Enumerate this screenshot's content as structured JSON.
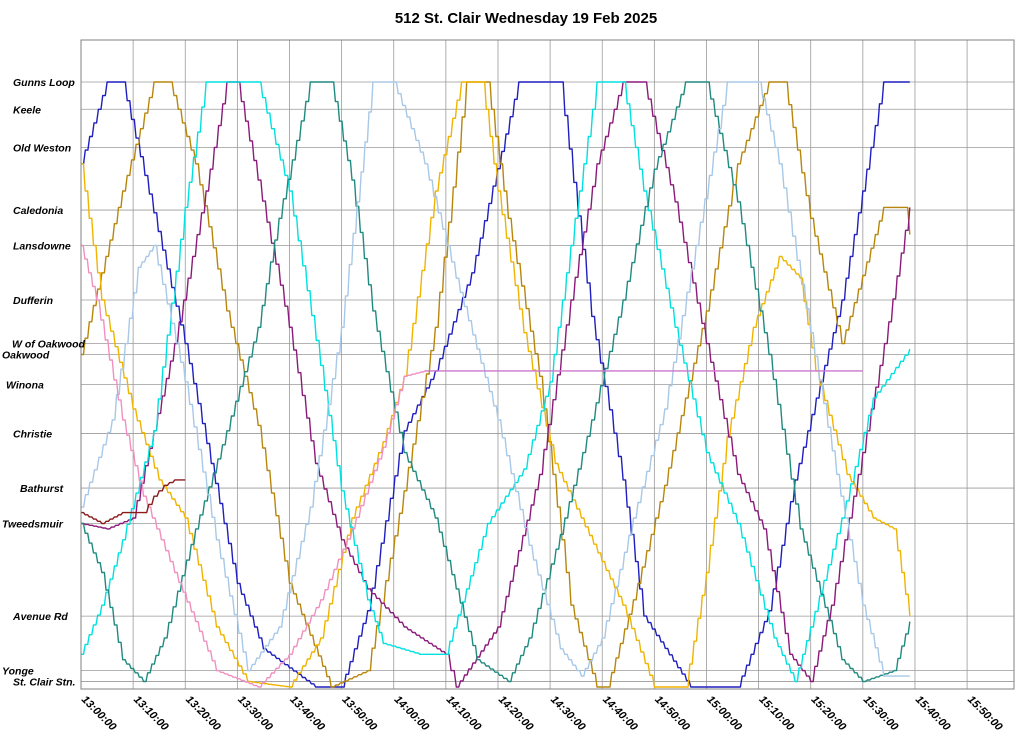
{
  "chart_data": {
    "type": "line",
    "title": "512 St. Clair Wednesday 19 Feb 2025",
    "xlabel": "",
    "ylabel": "",
    "grid": true,
    "x_ticks": [
      "13:00:00",
      "13:10:00",
      "13:20:00",
      "13:30:00",
      "13:40:00",
      "13:50:00",
      "14:00:00",
      "14:10:00",
      "14:20:00",
      "14:30:00",
      "14:40:00",
      "14:50:00",
      "15:00:00",
      "15:10:00",
      "15:20:00",
      "15:30:00",
      "15:40:00",
      "15:50:00"
    ],
    "xlim": [
      "13:00:00",
      "15:59:00"
    ],
    "stops": [
      {
        "label": "Gunns Loop",
        "km": 0.0
      },
      {
        "label": "Keele",
        "km": 0.5
      },
      {
        "label": "Old Weston",
        "km": 1.2
      },
      {
        "label": "Caledonia",
        "km": 2.35
      },
      {
        "label": "Lansdowne",
        "km": 3.0
      },
      {
        "label": "Dufferin",
        "km": 4.0
      },
      {
        "label": "W of Oakwood",
        "km": 4.8
      },
      {
        "label": "Oakwood",
        "km": 5.0
      },
      {
        "label": "Winona",
        "km": 5.55
      },
      {
        "label": "Christie",
        "km": 6.45
      },
      {
        "label": "Bathurst",
        "km": 7.45
      },
      {
        "label": "Tweedsmuir",
        "km": 8.1
      },
      {
        "label": "Avenue Rd",
        "km": 9.8
      },
      {
        "label": "Yonge",
        "km": 10.8
      },
      {
        "label": "St. Clair Stn.",
        "km": 11.0
      }
    ],
    "ylim": [
      0,
      11.1
    ],
    "series": [
      {
        "color": "#1f1fbf",
        "points": [
          [
            0,
            1.5
          ],
          [
            5,
            0
          ],
          [
            8,
            0
          ],
          [
            20,
            4.8
          ],
          [
            30,
            9.2
          ],
          [
            35,
            10.4
          ],
          [
            45,
            11.1
          ],
          [
            50,
            11.1
          ],
          [
            55,
            9.7
          ],
          [
            62,
            6.4
          ],
          [
            68,
            5.3
          ],
          [
            75,
            3.5
          ],
          [
            84,
            0
          ],
          [
            92,
            0
          ],
          [
            98,
            4.3
          ],
          [
            104,
            7.3
          ],
          [
            108,
            9.8
          ],
          [
            117,
            11.1
          ],
          [
            126,
            11.1
          ],
          [
            132,
            9.7
          ],
          [
            137,
            7.3
          ],
          [
            146,
            4.0
          ],
          [
            154,
            0
          ],
          [
            159,
            0
          ]
        ]
      },
      {
        "color": "#b8860b",
        "points": [
          [
            0,
            5.0
          ],
          [
            8,
            2.0
          ],
          [
            14,
            0
          ],
          [
            17,
            0
          ],
          [
            22,
            1.5
          ],
          [
            28,
            4.2
          ],
          [
            34,
            6.3
          ],
          [
            40,
            9.2
          ],
          [
            48,
            11.1
          ],
          [
            55,
            10.8
          ],
          [
            62,
            7.5
          ],
          [
            68,
            4.5
          ],
          [
            74,
            0
          ],
          [
            78,
            0
          ],
          [
            82,
            2.5
          ],
          [
            88,
            5.4
          ],
          [
            94,
            9.6
          ],
          [
            99,
            11.1
          ],
          [
            101,
            11.1
          ],
          [
            106,
            9.5
          ],
          [
            112,
            7.4
          ],
          [
            120,
            4.2
          ],
          [
            126,
            1.5
          ],
          [
            132,
            0
          ],
          [
            135,
            0
          ],
          [
            140,
            2.5
          ],
          [
            146,
            4.8
          ],
          [
            154,
            2.3
          ],
          [
            158,
            2.3
          ],
          [
            159,
            2.8
          ]
        ]
      },
      {
        "color": "#f0b400",
        "points": [
          [
            0,
            1.5
          ],
          [
            4,
            4.0
          ],
          [
            10,
            6.0
          ],
          [
            15,
            7.3
          ],
          [
            20,
            8.0
          ],
          [
            26,
            10.0
          ],
          [
            32,
            11.0
          ],
          [
            40,
            11.1
          ],
          [
            46,
            10.2
          ],
          [
            52,
            8.0
          ],
          [
            58,
            6.6
          ],
          [
            62,
            5.4
          ],
          [
            68,
            2.0
          ],
          [
            73,
            0
          ],
          [
            77,
            0
          ],
          [
            80,
            2.0
          ],
          [
            85,
            4.6
          ],
          [
            91,
            7.0
          ],
          [
            96,
            8.0
          ],
          [
            104,
            9.6
          ],
          [
            110,
            11.1
          ],
          [
            116,
            11.1
          ],
          [
            120,
            9.0
          ],
          [
            124,
            6.5
          ],
          [
            129,
            4.5
          ],
          [
            134,
            3.2
          ],
          [
            138,
            3.6
          ],
          [
            141,
            5.3
          ],
          [
            147,
            7.2
          ],
          [
            152,
            8.0
          ],
          [
            156,
            8.2
          ],
          [
            159,
            9.8
          ]
        ]
      },
      {
        "color": "#8b1a7a",
        "points": [
          [
            0,
            8.1
          ],
          [
            5,
            8.2
          ],
          [
            10,
            8.0
          ],
          [
            18,
            4.8
          ],
          [
            24,
            2.0
          ],
          [
            28,
            0
          ],
          [
            30,
            0
          ],
          [
            34,
            1.8
          ],
          [
            40,
            4.5
          ],
          [
            45,
            7.0
          ],
          [
            50,
            8.4
          ],
          [
            55,
            9.3
          ],
          [
            62,
            10.0
          ],
          [
            70,
            10.5
          ],
          [
            72,
            11.1
          ],
          [
            80,
            10.0
          ],
          [
            88,
            7.2
          ],
          [
            94,
            4.0
          ],
          [
            99,
            1.5
          ],
          [
            104,
            0
          ],
          [
            108,
            0
          ],
          [
            114,
            2.2
          ],
          [
            120,
            4.8
          ],
          [
            126,
            7.2
          ],
          [
            131,
            8.2
          ],
          [
            136,
            10.5
          ],
          [
            140,
            11.0
          ],
          [
            144,
            9.6
          ],
          [
            150,
            6.8
          ],
          [
            155,
            4.4
          ],
          [
            159,
            2.3
          ]
        ]
      },
      {
        "color": "#00e0e0",
        "points": [
          [
            0,
            10.5
          ],
          [
            4,
            9.6
          ],
          [
            8,
            8.4
          ],
          [
            14,
            6.4
          ],
          [
            20,
            2.3
          ],
          [
            24,
            0
          ],
          [
            26,
            0
          ],
          [
            34,
            0
          ],
          [
            40,
            2.0
          ],
          [
            46,
            5.2
          ],
          [
            50,
            7.5
          ],
          [
            55,
            9.5
          ],
          [
            58,
            10.3
          ],
          [
            65,
            10.5
          ],
          [
            70,
            10.5
          ],
          [
            78,
            8.1
          ],
          [
            85,
            7.1
          ],
          [
            90,
            5.5
          ],
          [
            94,
            3.0
          ],
          [
            99,
            0
          ],
          [
            104,
            0
          ],
          [
            108,
            2.0
          ],
          [
            114,
            4.5
          ],
          [
            120,
            6.8
          ],
          [
            126,
            8.1
          ],
          [
            133,
            10.2
          ],
          [
            137,
            11.0
          ],
          [
            140,
            10.0
          ],
          [
            146,
            8.0
          ],
          [
            152,
            5.8
          ],
          [
            159,
            4.9
          ]
        ]
      },
      {
        "color": "#1f8a80",
        "points": [
          [
            0,
            8.1
          ],
          [
            4,
            9.0
          ],
          [
            8,
            10.6
          ],
          [
            12,
            11.0
          ],
          [
            16,
            10.2
          ],
          [
            22,
            8.2
          ],
          [
            28,
            6.4
          ],
          [
            34,
            4.5
          ],
          [
            38,
            2.5
          ],
          [
            44,
            0
          ],
          [
            48,
            0
          ],
          [
            52,
            1.8
          ],
          [
            56,
            4.2
          ],
          [
            62,
            6.8
          ],
          [
            68,
            8.0
          ],
          [
            76,
            10.6
          ],
          [
            82,
            11.0
          ],
          [
            86,
            10.2
          ],
          [
            92,
            8.3
          ],
          [
            98,
            6.2
          ],
          [
            104,
            4.0
          ],
          [
            110,
            1.6
          ],
          [
            116,
            0
          ],
          [
            120,
            0
          ],
          [
            126,
            2.2
          ],
          [
            132,
            5.0
          ],
          [
            138,
            8.2
          ],
          [
            146,
            10.6
          ],
          [
            150,
            11.0
          ],
          [
            156,
            10.8
          ],
          [
            159,
            9.9
          ]
        ]
      },
      {
        "color": "#a8c8e8",
        "points": [
          [
            0,
            7.8
          ],
          [
            6,
            6.2
          ],
          [
            11,
            3.4
          ],
          [
            14,
            3.0
          ],
          [
            20,
            5.5
          ],
          [
            26,
            8.4
          ],
          [
            32,
            10.8
          ],
          [
            38,
            10.0
          ],
          [
            44,
            7.8
          ],
          [
            50,
            4.5
          ],
          [
            53,
            2.2
          ],
          [
            56,
            0
          ],
          [
            60,
            0
          ],
          [
            66,
            1.5
          ],
          [
            72,
            3.6
          ],
          [
            80,
            6.2
          ],
          [
            86,
            8.5
          ],
          [
            92,
            10.4
          ],
          [
            96,
            10.9
          ],
          [
            100,
            10.2
          ],
          [
            106,
            8.0
          ],
          [
            112,
            6.0
          ],
          [
            118,
            3.0
          ],
          [
            124,
            0
          ],
          [
            130,
            0
          ],
          [
            134,
            1.5
          ],
          [
            140,
            4.6
          ],
          [
            145,
            7.2
          ],
          [
            150,
            9.6
          ],
          [
            154,
            10.9
          ],
          [
            159,
            10.9
          ]
        ]
      },
      {
        "color": "#f090c0",
        "points": [
          [
            0,
            3.0
          ],
          [
            3,
            4.0
          ],
          [
            8,
            6.2
          ],
          [
            12,
            7.6
          ],
          [
            18,
            9.0
          ],
          [
            26,
            10.8
          ],
          [
            34,
            11.1
          ],
          [
            40,
            10.5
          ],
          [
            46,
            9.5
          ],
          [
            52,
            8.2
          ],
          [
            58,
            6.7
          ],
          [
            62,
            5.4
          ],
          [
            66,
            5.3
          ]
        ]
      },
      {
        "color": "#cc77cc",
        "points": [
          [
            66,
            5.3
          ],
          [
            150,
            5.3
          ]
        ]
      },
      {
        "color": "#8b1a1a",
        "points": [
          [
            0,
            7.9
          ],
          [
            4,
            8.1
          ],
          [
            8,
            7.9
          ],
          [
            12,
            7.9
          ],
          [
            14,
            7.6
          ],
          [
            16,
            7.4
          ],
          [
            18,
            7.3
          ],
          [
            20,
            7.3
          ]
        ]
      }
    ]
  }
}
